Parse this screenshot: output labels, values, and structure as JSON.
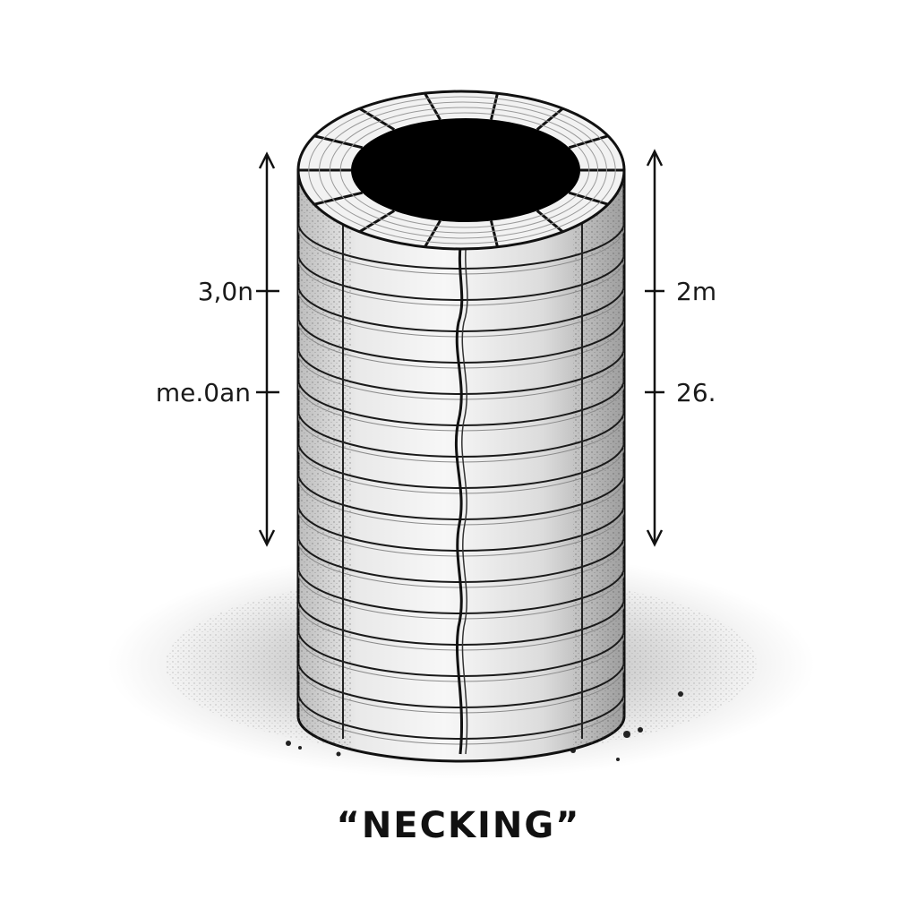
{
  "diagram": {
    "subject": "stacked-ring-cylinder",
    "caption": "“NECKING”",
    "left_labels": [
      "3,0n",
      "me.0an"
    ],
    "right_labels": [
      "2m",
      "26."
    ],
    "colors": {
      "ink": "#111111",
      "hole": "#000000",
      "shadow": "#555555",
      "background": "#ffffff"
    }
  }
}
